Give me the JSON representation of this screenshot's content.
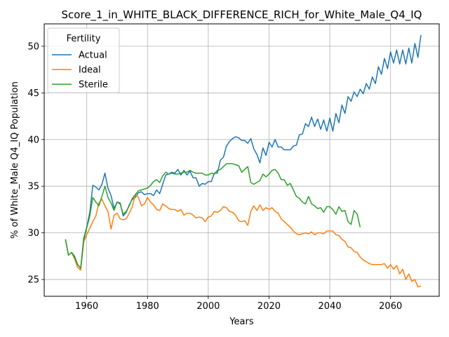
{
  "chart_data": {
    "type": "line",
    "title": "Score_1_in_WHITE_BLACK_DIFFERENCE_RICH_for_White_Male_Q4_IQ",
    "xlabel": "Years",
    "ylabel": "% of White_Male Q4_IQ Population",
    "xlim": [
      1946,
      2076
    ],
    "ylim": [
      23.2,
      52.4
    ],
    "xticks": [
      1960,
      1980,
      2000,
      2020,
      2040,
      2060
    ],
    "yticks": [
      25,
      30,
      35,
      40,
      45,
      50
    ],
    "grid": true,
    "legend": {
      "title": "Fertility",
      "placement": "top-left"
    },
    "series": [
      {
        "name": "Actual",
        "color": "#1f77b4",
        "x": [
          1953,
          1954,
          1955,
          1956,
          1957,
          1958,
          1959,
          1960,
          1961,
          1962,
          1963,
          1964,
          1965,
          1966,
          1967,
          1968,
          1969,
          1970,
          1971,
          1972,
          1973,
          1974,
          1975,
          1976,
          1977,
          1978,
          1979,
          1980,
          1981,
          1982,
          1983,
          1984,
          1985,
          1986,
          1987,
          1988,
          1989,
          1990,
          1991,
          1992,
          1993,
          1994,
          1995,
          1996,
          1997,
          1998,
          1999,
          2000,
          2001,
          2002,
          2003,
          2004,
          2005,
          2006,
          2007,
          2008,
          2009,
          2010,
          2011,
          2012,
          2013,
          2014,
          2015,
          2016,
          2017,
          2018,
          2019,
          2020,
          2021,
          2022,
          2023,
          2024,
          2025,
          2026,
          2027,
          2028,
          2029,
          2030,
          2031,
          2032,
          2033,
          2034,
          2035,
          2036,
          2037,
          2038,
          2039,
          2040,
          2041,
          2042,
          2043,
          2044,
          2045,
          2046,
          2047,
          2048,
          2049,
          2050,
          2051,
          2052,
          2053,
          2054,
          2055,
          2056,
          2057,
          2058,
          2059,
          2060,
          2061,
          2062,
          2063,
          2064,
          2065,
          2066,
          2067,
          2068,
          2069,
          2070
        ],
        "y": [
          29.3,
          27.6,
          27.9,
          27.5,
          26.6,
          26.2,
          29.4,
          30.6,
          32.2,
          35.1,
          34.9,
          34.6,
          35.2,
          36.4,
          34.8,
          34.0,
          32.6,
          33.3,
          33.2,
          31.8,
          32.2,
          33.0,
          33.6,
          33.8,
          34.3,
          34.4,
          34.1,
          34.2,
          34.2,
          34.0,
          34.6,
          34.2,
          35.2,
          36.2,
          36.3,
          36.5,
          36.4,
          36.8,
          36.2,
          36.7,
          36.2,
          36.6,
          35.9,
          35.9,
          35.0,
          35.3,
          35.2,
          35.5,
          35.5,
          36.4,
          36.4,
          37.8,
          38.1,
          39.3,
          39.8,
          40.1,
          40.3,
          40.2,
          39.9,
          39.9,
          39.6,
          40.1,
          39.0,
          38.4,
          37.5,
          39.1,
          38.3,
          39.7,
          39.2,
          40.0,
          39.2,
          39.2,
          38.9,
          38.9,
          38.9,
          39.3,
          39.4,
          40.5,
          40.6,
          41.7,
          41.4,
          42.4,
          41.4,
          42.2,
          41.1,
          42.1,
          40.9,
          42.3,
          40.9,
          42.8,
          41.8,
          43.7,
          42.8,
          44.6,
          44.1,
          45.1,
          44.6,
          45.4,
          44.9,
          46.0,
          45.4,
          46.7,
          46.0,
          47.8,
          47.0,
          48.7,
          47.6,
          49.4,
          48.2,
          49.6,
          48.1,
          49.6,
          48.1,
          49.8,
          48.2,
          50.3,
          48.8,
          51.2
        ]
      },
      {
        "name": "Ideal",
        "color": "#ff7f0e",
        "x": [
          1953,
          1954,
          1955,
          1956,
          1957,
          1958,
          1959,
          1960,
          1961,
          1962,
          1963,
          1964,
          1965,
          1966,
          1967,
          1968,
          1969,
          1970,
          1971,
          1972,
          1973,
          1974,
          1975,
          1976,
          1977,
          1978,
          1979,
          1980,
          1981,
          1982,
          1983,
          1984,
          1985,
          1986,
          1987,
          1988,
          1989,
          1990,
          1991,
          1992,
          1993,
          1994,
          1995,
          1996,
          1997,
          1998,
          1999,
          2000,
          2001,
          2002,
          2003,
          2004,
          2005,
          2006,
          2007,
          2008,
          2009,
          2010,
          2011,
          2012,
          2013,
          2014,
          2015,
          2016,
          2017,
          2018,
          2019,
          2020,
          2021,
          2022,
          2023,
          2024,
          2025,
          2026,
          2027,
          2028,
          2029,
          2030,
          2031,
          2032,
          2033,
          2034,
          2035,
          2036,
          2037,
          2038,
          2039,
          2040,
          2041,
          2042,
          2043,
          2044,
          2045,
          2046,
          2047,
          2048,
          2049,
          2050,
          2051,
          2052,
          2053,
          2054,
          2055,
          2056,
          2057,
          2058,
          2059,
          2060,
          2061,
          2062,
          2063,
          2064,
          2065,
          2066,
          2067,
          2068,
          2069,
          2070
        ],
        "y": [
          29.3,
          27.6,
          27.9,
          27.2,
          26.3,
          26.0,
          29.0,
          29.8,
          30.5,
          31.2,
          31.8,
          33.2,
          33.6,
          32.9,
          32.3,
          30.4,
          31.9,
          32.1,
          31.5,
          31.4,
          31.5,
          32.1,
          32.8,
          34.1,
          33.8,
          32.9,
          33.1,
          33.8,
          33.3,
          33.0,
          32.5,
          32.4,
          33.1,
          32.9,
          32.6,
          32.5,
          32.5,
          32.3,
          32.5,
          31.9,
          32.1,
          32.1,
          31.9,
          31.6,
          31.7,
          31.6,
          31.2,
          31.7,
          31.8,
          32.3,
          32.2,
          32.4,
          32.8,
          32.7,
          32.3,
          32.2,
          31.9,
          31.3,
          31.2,
          31.3,
          30.8,
          32.3,
          32.9,
          32.4,
          33.0,
          32.4,
          32.7,
          32.5,
          32.7,
          32.3,
          32.1,
          31.5,
          31.2,
          30.9,
          30.6,
          30.2,
          29.9,
          29.8,
          29.9,
          30.0,
          29.9,
          30.1,
          29.8,
          30.0,
          30.0,
          29.9,
          30.2,
          30.2,
          30.2,
          29.8,
          29.7,
          29.3,
          29.1,
          28.5,
          28.4,
          28.0,
          27.9,
          27.4,
          27.1,
          26.9,
          26.7,
          26.6,
          26.6,
          26.6,
          26.6,
          26.7,
          26.2,
          26.6,
          26.1,
          26.5,
          25.6,
          26.1,
          25.0,
          25.6,
          24.8,
          25.0,
          24.2,
          24.3
        ]
      },
      {
        "name": "Sterile",
        "color": "#2ca02c",
        "x": [
          1953,
          1954,
          1955,
          1956,
          1957,
          1958,
          1959,
          1960,
          1961,
          1962,
          1963,
          1964,
          1965,
          1966,
          1967,
          1968,
          1969,
          1970,
          1971,
          1972,
          1973,
          1974,
          1975,
          1976,
          1977,
          1978,
          1979,
          1980,
          1981,
          1982,
          1983,
          1984,
          1985,
          1986,
          1987,
          1988,
          1989,
          1990,
          1991,
          1992,
          1993,
          1994,
          1995,
          1996,
          1997,
          1998,
          1999,
          2000,
          2001,
          2002,
          2003,
          2004,
          2005,
          2006,
          2007,
          2008,
          2009,
          2010,
          2011,
          2012,
          2013,
          2014,
          2015,
          2016,
          2017,
          2018,
          2019,
          2020,
          2021,
          2022,
          2023,
          2024,
          2025,
          2026,
          2027,
          2028,
          2029,
          2030,
          2031,
          2032,
          2033,
          2034,
          2035,
          2036,
          2037,
          2038,
          2039,
          2040,
          2041,
          2042,
          2043,
          2044,
          2045,
          2046,
          2047,
          2048,
          2049,
          2050
        ],
        "y": [
          29.3,
          27.6,
          27.9,
          27.4,
          26.6,
          26.2,
          29.2,
          30.5,
          31.8,
          33.8,
          33.3,
          32.9,
          33.9,
          35.0,
          33.8,
          33.2,
          32.4,
          33.3,
          33.1,
          32.0,
          32.3,
          32.9,
          33.7,
          34.1,
          34.5,
          34.6,
          34.7,
          34.8,
          35.1,
          35.5,
          35.7,
          35.4,
          36.1,
          36.5,
          36.3,
          36.4,
          36.3,
          36.3,
          36.4,
          36.5,
          36.5,
          36.7,
          36.5,
          36.4,
          36.4,
          36.4,
          36.2,
          36.2,
          36.4,
          36.3,
          36.7,
          36.8,
          37.1,
          37.4,
          37.4,
          37.4,
          37.3,
          37.2,
          36.5,
          36.8,
          37.1,
          35.4,
          35.2,
          35.4,
          35.6,
          36.3,
          36.0,
          36.3,
          36.7,
          36.8,
          36.4,
          35.7,
          35.7,
          35.1,
          35.3,
          34.6,
          33.9,
          33.7,
          33.3,
          33.1,
          33.9,
          33.1,
          32.9,
          32.6,
          32.7,
          32.2,
          32.8,
          32.8,
          32.5,
          32.0,
          32.8,
          32.3,
          32.4,
          31.2,
          30.9,
          32.4,
          32.0,
          30.6
        ]
      }
    ]
  }
}
